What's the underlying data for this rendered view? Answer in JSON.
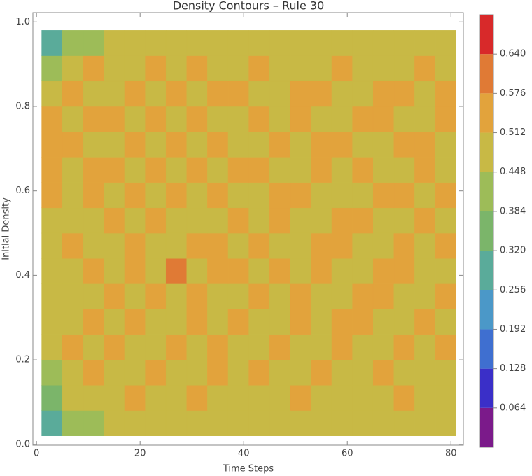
{
  "chart_data": {
    "type": "contour",
    "title": "Density Contours – Rule 30",
    "x_label": "Time Steps",
    "y_label": "Initial Density",
    "xlim": [
      -0.7,
      82.4
    ],
    "ylim": [
      -0.002,
      1.022
    ],
    "xticks": [
      0,
      20,
      40,
      60,
      80
    ],
    "yticks": [
      {
        "value": 0,
        "label": "0.0"
      },
      {
        "value": 0.2,
        "label": "0.2"
      },
      {
        "value": 0.4,
        "label": "0.4"
      },
      {
        "value": 0.6,
        "label": "0.6"
      },
      {
        "value": 0.8,
        "label": "0.8"
      },
      {
        "value": 1,
        "label": "1.0"
      }
    ],
    "x": [
      3,
      7,
      11,
      15,
      19,
      23,
      27,
      31,
      35,
      39,
      43,
      47,
      51,
      55,
      59,
      63,
      67,
      71,
      75,
      79
    ],
    "y": [
      0.05,
      0.11,
      0.17,
      0.23,
      0.29,
      0.35,
      0.41,
      0.47,
      0.53,
      0.59,
      0.65,
      0.71,
      0.77,
      0.83,
      0.89,
      0.95
    ],
    "z": [
      [
        0.28,
        0.4,
        0.44,
        0.46,
        0.45,
        0.47,
        0.46,
        0.48,
        0.47,
        0.46,
        0.47,
        0.46,
        0.45,
        0.47,
        0.48,
        0.46,
        0.47,
        0.46,
        0.45,
        0.46
      ],
      [
        0.38,
        0.47,
        0.5,
        0.49,
        0.52,
        0.5,
        0.48,
        0.53,
        0.49,
        0.51,
        0.5,
        0.48,
        0.52,
        0.5,
        0.49,
        0.51,
        0.5,
        0.53,
        0.49,
        0.5
      ],
      [
        0.44,
        0.5,
        0.53,
        0.49,
        0.51,
        0.55,
        0.5,
        0.48,
        0.52,
        0.5,
        0.54,
        0.49,
        0.51,
        0.53,
        0.5,
        0.48,
        0.52,
        0.5,
        0.51,
        0.49
      ],
      [
        0.46,
        0.52,
        0.49,
        0.54,
        0.5,
        0.51,
        0.56,
        0.5,
        0.53,
        0.49,
        0.51,
        0.55,
        0.5,
        0.48,
        0.53,
        0.51,
        0.49,
        0.54,
        0.5,
        0.52
      ],
      [
        0.47,
        0.49,
        0.52,
        0.5,
        0.55,
        0.48,
        0.51,
        0.53,
        0.5,
        0.57,
        0.49,
        0.51,
        0.53,
        0.5,
        0.52,
        0.55,
        0.5,
        0.49,
        0.53,
        0.5
      ],
      [
        0.48,
        0.51,
        0.5,
        0.53,
        0.49,
        0.52,
        0.5,
        0.55,
        0.51,
        0.49,
        0.53,
        0.5,
        0.56,
        0.51,
        0.49,
        0.52,
        0.54,
        0.5,
        0.51,
        0.53
      ],
      [
        0.47,
        0.5,
        0.54,
        0.49,
        0.52,
        0.5,
        0.58,
        0.49,
        0.52,
        0.54,
        0.5,
        0.52,
        0.49,
        0.55,
        0.51,
        0.5,
        0.53,
        0.52,
        0.49,
        0.51
      ],
      [
        0.48,
        0.52,
        0.49,
        0.51,
        0.54,
        0.51,
        0.5,
        0.52,
        0.55,
        0.5,
        0.53,
        0.49,
        0.51,
        0.52,
        0.56,
        0.49,
        0.51,
        0.53,
        0.5,
        0.52
      ],
      [
        0.5,
        0.49,
        0.51,
        0.55,
        0.5,
        0.53,
        0.49,
        0.51,
        0.5,
        0.53,
        0.51,
        0.55,
        0.5,
        0.49,
        0.52,
        0.54,
        0.5,
        0.51,
        0.55,
        0.5
      ],
      [
        0.52,
        0.51,
        0.53,
        0.5,
        0.52,
        0.49,
        0.54,
        0.5,
        0.56,
        0.51,
        0.49,
        0.52,
        0.53,
        0.5,
        0.51,
        0.49,
        0.57,
        0.52,
        0.5,
        0.53
      ],
      [
        0.53,
        0.5,
        0.52,
        0.54,
        0.49,
        0.55,
        0.51,
        0.53,
        0.49,
        0.52,
        0.55,
        0.5,
        0.51,
        0.54,
        0.5,
        0.52,
        0.51,
        0.49,
        0.54,
        0.51
      ],
      [
        0.54,
        0.52,
        0.49,
        0.51,
        0.56,
        0.5,
        0.52,
        0.49,
        0.53,
        0.51,
        0.5,
        0.54,
        0.49,
        0.52,
        0.55,
        0.51,
        0.5,
        0.53,
        0.52,
        0.5
      ],
      [
        0.52,
        0.5,
        0.55,
        0.52,
        0.5,
        0.53,
        0.49,
        0.55,
        0.51,
        0.5,
        0.52,
        0.51,
        0.55,
        0.5,
        0.49,
        0.53,
        0.52,
        0.5,
        0.51,
        0.55
      ],
      [
        0.48,
        0.53,
        0.51,
        0.5,
        0.54,
        0.51,
        0.52,
        0.5,
        0.53,
        0.56,
        0.49,
        0.51,
        0.52,
        0.53,
        0.5,
        0.51,
        0.55,
        0.52,
        0.49,
        0.52
      ],
      [
        0.42,
        0.49,
        0.52,
        0.51,
        0.49,
        0.52,
        0.51,
        0.53,
        0.5,
        0.51,
        0.52,
        0.5,
        0.49,
        0.51,
        0.53,
        0.5,
        0.49,
        0.51,
        0.52,
        0.5
      ],
      [
        0.3,
        0.4,
        0.44,
        0.47,
        0.48,
        0.47,
        0.48,
        0.46,
        0.47,
        0.48,
        0.47,
        0.48,
        0.46,
        0.47,
        0.48,
        0.47,
        0.46,
        0.48,
        0.47,
        0.46
      ]
    ],
    "levels": [
      0,
      0.064,
      0.128,
      0.192,
      0.256,
      0.32,
      0.384,
      0.448,
      0.512,
      0.576,
      0.64,
      0.704
    ],
    "colors": [
      "#7b1a8a",
      "#3a2fc8",
      "#3f6fd0",
      "#4b98c8",
      "#5aab9a",
      "#7bb56a",
      "#9dbc58",
      "#c8b945",
      "#e2a33c",
      "#e07a35",
      "#d8292a"
    ],
    "colorbar_ticks": [
      0.064,
      0.128,
      0.192,
      0.256,
      {
        "value": 0.32,
        "label": "0.320"
      },
      0.384,
      0.448,
      0.512,
      0.576,
      {
        "value": 0.64,
        "label": "0.640"
      }
    ]
  }
}
